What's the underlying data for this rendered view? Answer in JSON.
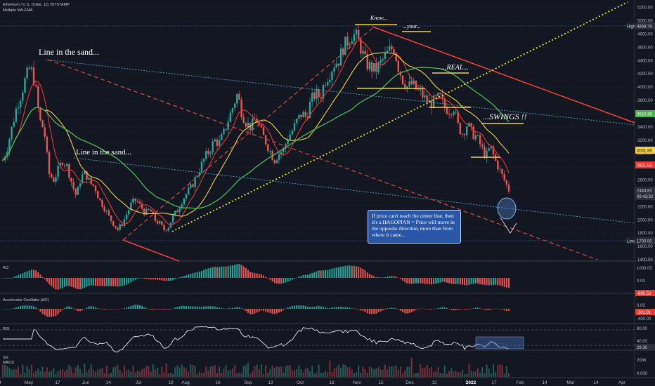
{
  "header": {
    "symbol": "Ethereum / U.S. Dollar, 1D, BITSTAMP",
    "indicator": "Multiple MA-EMA"
  },
  "annotations": {
    "line_in_sand_1": "Line in the sand...",
    "line_in_sand_2": "Line in the sand...",
    "know": "Know...",
    "your": "...your...",
    "real": "...REAL...",
    "swings": "...SWINGS !!",
    "callout": "If price can't reach the center line, then it's a HAGOPIAN = Price will move in the opposite direction, more than from where it came..."
  },
  "panels": {
    "ao": {
      "label": "AO",
      "value": "-890.53"
    },
    "ac": {
      "label": "Accelerator Oscillator (AO)",
      "value": "-201.91"
    },
    "rsi": {
      "label": "RSI",
      "value": "29.30"
    },
    "vol": {
      "label": "Vol"
    },
    "macd": {
      "label": "MACD"
    }
  },
  "chart_data": {
    "type": "candlestick",
    "x_ticks": [
      "4",
      "May",
      "17",
      "Jun",
      "14",
      "Jul",
      "19",
      "Aug",
      "16",
      "Sep",
      "13",
      "Oct",
      "18",
      "Nov",
      "15",
      "Dec",
      "13",
      "2022",
      "17",
      "Feb",
      "14",
      "Mar",
      "14",
      "Apr"
    ],
    "y_ticks": [
      "5200.00",
      "5000.00",
      "4800.00",
      "4600.00",
      "4400.00",
      "4200.00",
      "4000.00",
      "3800.00",
      "3600.00",
      "3400.00",
      "3200.00",
      "3000.00",
      "2800.00",
      "2600.00",
      "2400.00",
      "2200.00",
      "2000.00",
      "1800.00",
      "1600.00",
      "1400.00"
    ],
    "ylim": [
      1400,
      5260
    ],
    "price_labels": [
      {
        "text": "High",
        "value": "4868.79"
      },
      {
        "text": "",
        "value": "3510.36"
      },
      {
        "text": "",
        "value": "3031.86"
      },
      {
        "text": "",
        "value": "2821.92"
      },
      {
        "text": "",
        "value": "2444.82"
      },
      {
        "text": "",
        "value": "09:43:32"
      },
      {
        "text": "Low",
        "value": "1700.00"
      }
    ],
    "ao_ticks": [
      "1000.00",
      "0.00",
      "-1000.00"
    ],
    "ac_ticks": [
      "0.00",
      "-400.00"
    ],
    "rsi_ticks": [
      "80.00",
      "40.00"
    ],
    "vol_ticks": [
      "200K"
    ],
    "macd_ticks": [
      "0.000"
    ],
    "close_series": [
      2900,
      3100,
      3400,
      3700,
      3900,
      4150,
      4300,
      4050,
      3500,
      3350,
      2700,
      2600,
      2750,
      2900,
      2800,
      2550,
      2350,
      2650,
      2700,
      2550,
      2500,
      2300,
      2200,
      2050,
      1950,
      1850,
      1950,
      2100,
      2250,
      2300,
      2200,
      2100,
      2150,
      2000,
      1950,
      1850,
      1900,
      2050,
      2150,
      2300,
      2400,
      2500,
      2650,
      2800,
      2950,
      3050,
      3200,
      3150,
      3300,
      3500,
      3700,
      3900,
      3600,
      3450,
      3400,
      3550,
      3350,
      3200,
      3050,
      2900,
      3000,
      3050,
      3250,
      3350,
      3500,
      3600,
      3550,
      3800,
      3900,
      3850,
      4100,
      4200,
      4350,
      4400,
      4600,
      4700,
      4800,
      4750,
      4550,
      4350,
      4300,
      4250,
      4350,
      4450,
      4550,
      4600,
      4300,
      4100,
      4000,
      4050,
      3950,
      3900,
      3800,
      3750,
      3800,
      3850,
      3700,
      3650,
      3700,
      3400,
      3300,
      3450,
      3300,
      3250,
      3100,
      2950,
      3100,
      2900,
      2750,
      2600,
      2450
    ]
  }
}
